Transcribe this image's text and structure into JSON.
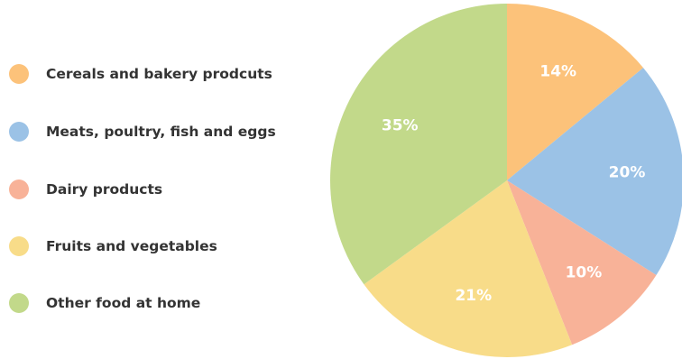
{
  "chart_data": {
    "type": "pie",
    "categories": [
      "Cereals and bakery prodcuts",
      "Meats, poultry, fish and eggs",
      "Dairy products",
      "Fruits and vegetables",
      "Other food at home"
    ],
    "values": [
      14,
      20,
      10,
      21,
      35
    ],
    "value_labels": [
      "14%",
      "20%",
      "10%",
      "21%",
      "35%"
    ],
    "colors": [
      "#fcc27a",
      "#9bc2e6",
      "#f8b298",
      "#f8dc89",
      "#c2d98a"
    ],
    "start_angle": "top, clockwise",
    "legend_position": "left"
  }
}
